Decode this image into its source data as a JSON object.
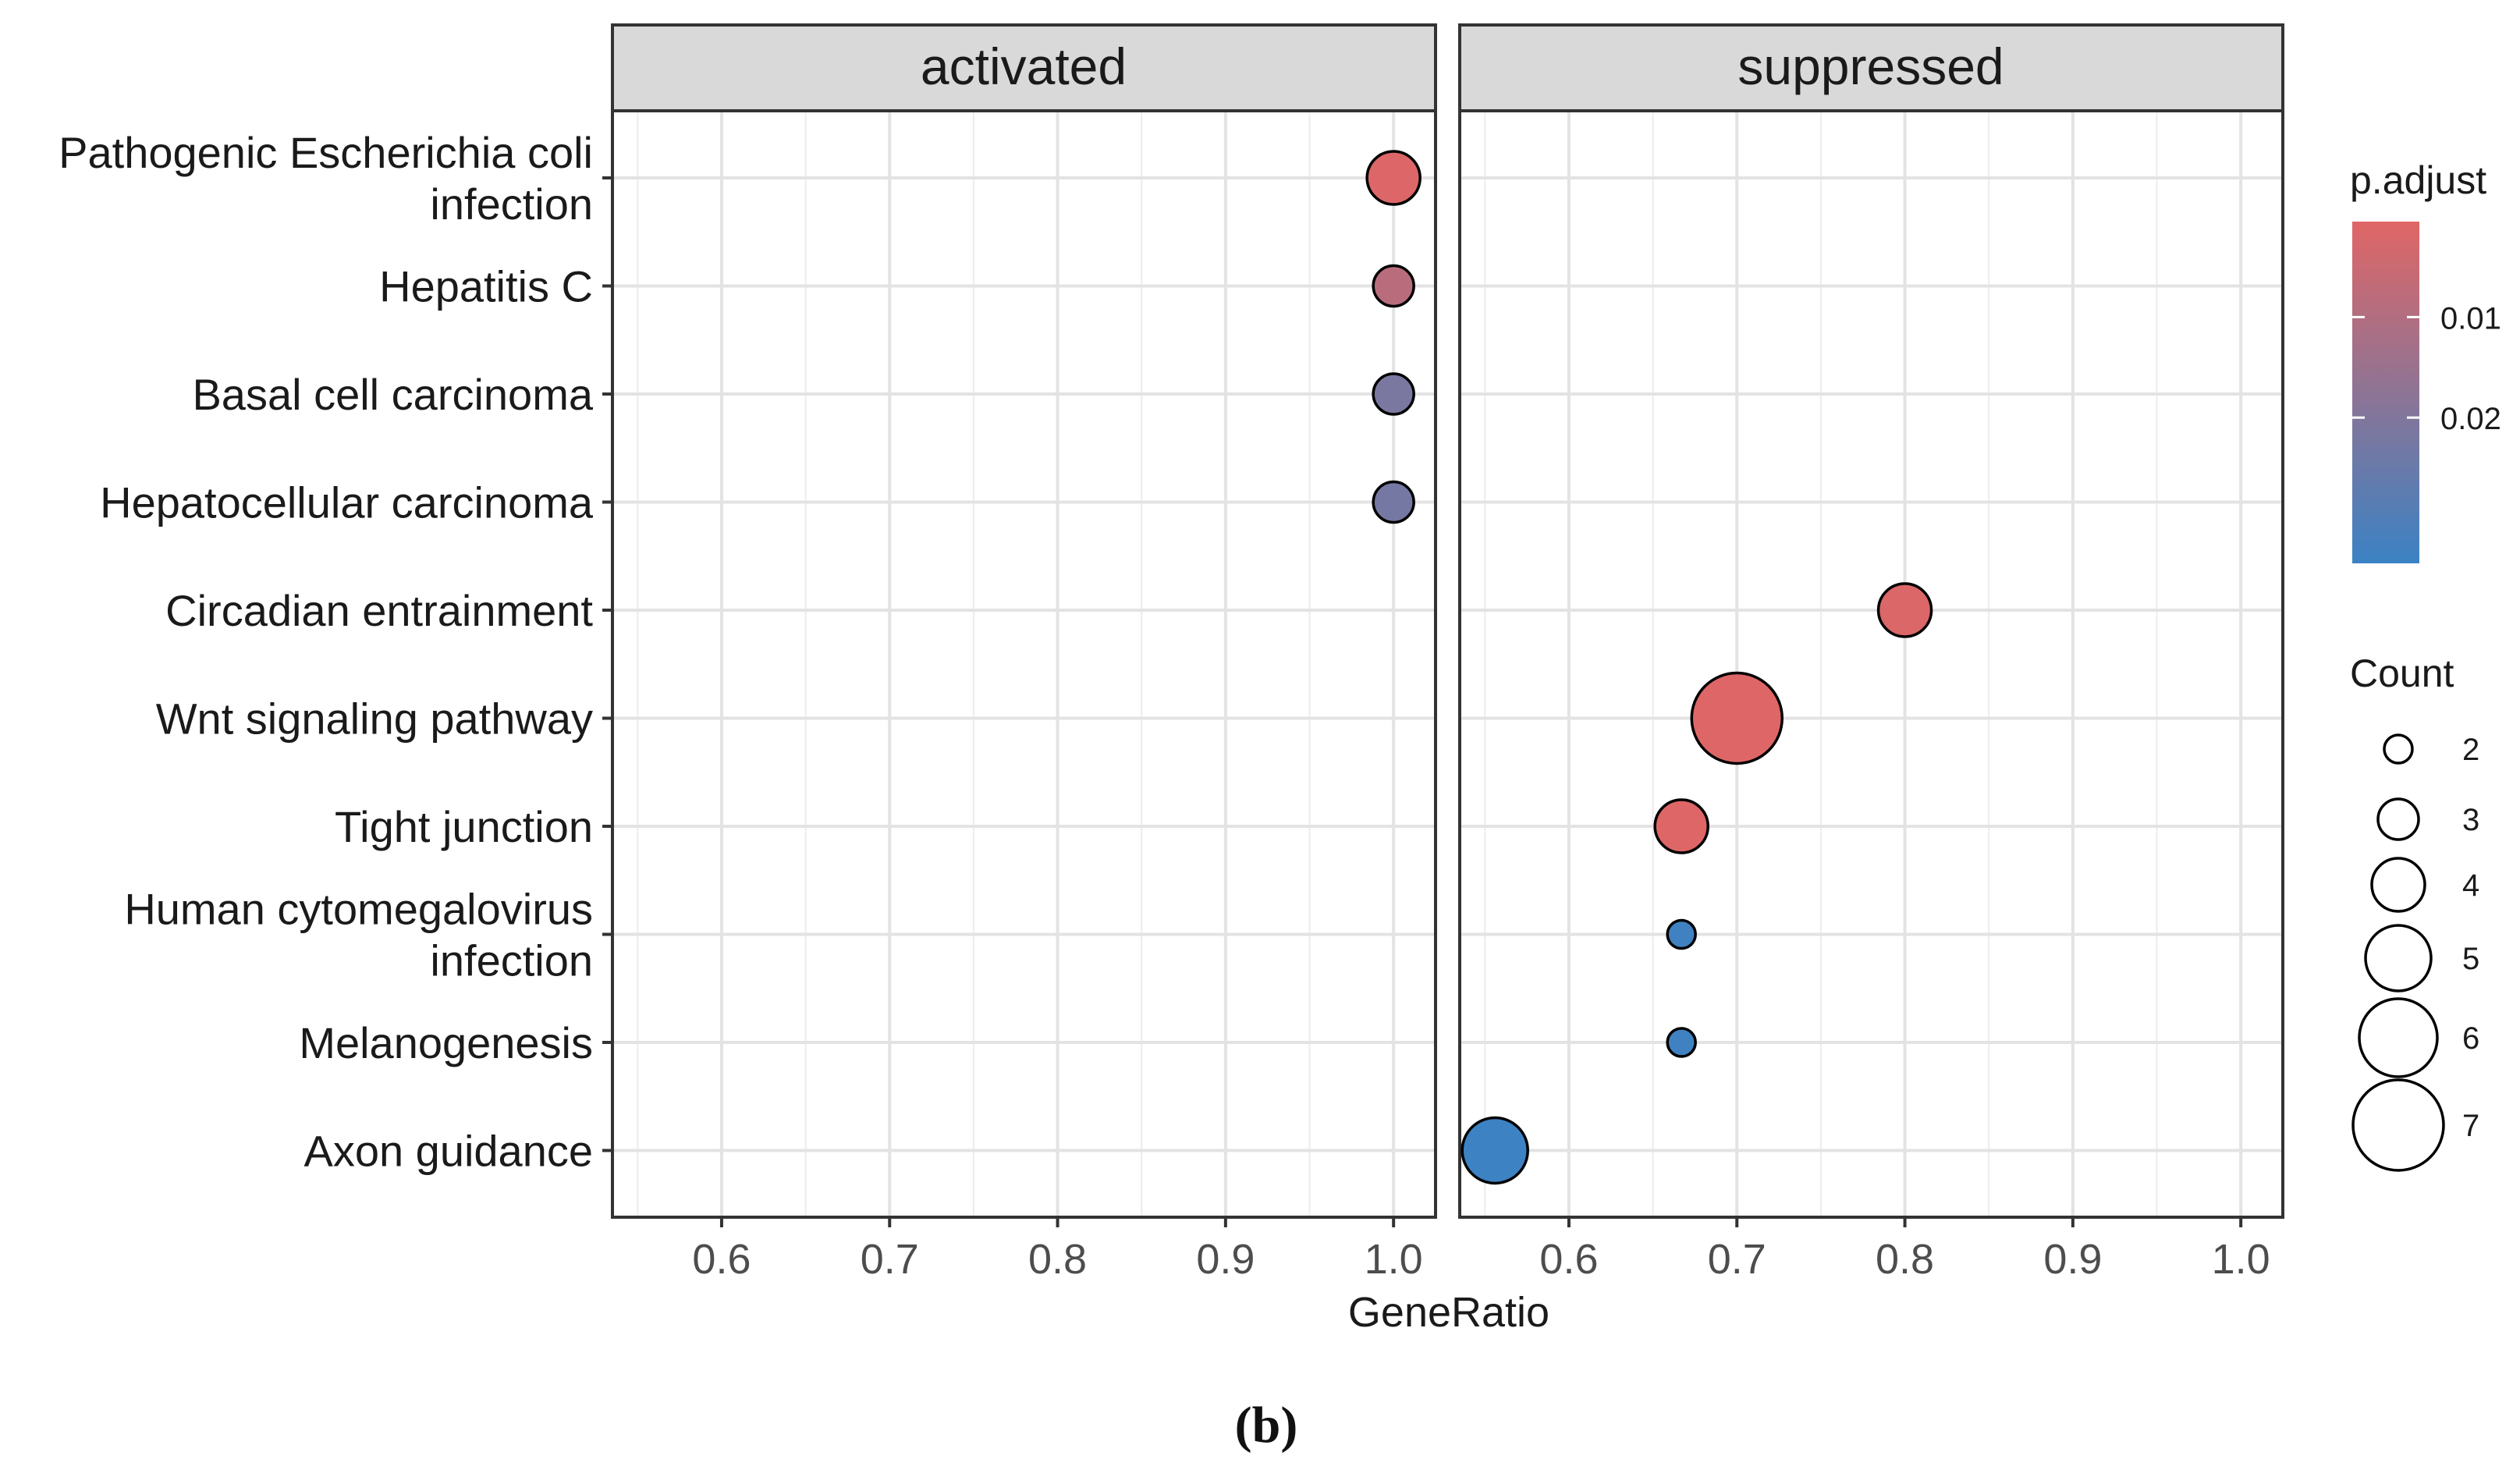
{
  "chart_data": {
    "type": "scatter",
    "subtype": "faceted dot plot",
    "xlabel": "GeneRatio",
    "xlim": [
      0.535,
      1.025
    ],
    "x_ticks": [
      0.6,
      0.7,
      0.8,
      0.9,
      1.0
    ],
    "x_tick_labels": [
      "0.6",
      "0.7",
      "0.8",
      "0.9",
      "1.0"
    ],
    "grid": true,
    "categories": [
      [
        "Pathogenic Escherichia coli",
        "infection"
      ],
      [
        "Hepatitis C"
      ],
      [
        "Basal cell carcinoma"
      ],
      [
        "Hepatocellular carcinoma"
      ],
      [
        "Circadian entrainment"
      ],
      [
        "Wnt signaling pathway"
      ],
      [
        "Tight junction"
      ],
      [
        "Human cytomegalovirus",
        "infection"
      ],
      [
        "Melanogenesis"
      ],
      [
        "Axon guidance"
      ]
    ],
    "facets": [
      {
        "name": "activated",
        "points": [
          {
            "category": 0,
            "gene_ratio": 1.0,
            "count": 4,
            "p_adjust": 0.0012
          },
          {
            "category": 1,
            "gene_ratio": 1.0,
            "count": 3,
            "p_adjust": 0.0085
          },
          {
            "category": 2,
            "gene_ratio": 1.0,
            "count": 3,
            "p_adjust": 0.0215
          },
          {
            "category": 3,
            "gene_ratio": 1.0,
            "count": 3,
            "p_adjust": 0.0225
          }
        ]
      },
      {
        "name": "suppressed",
        "points": [
          {
            "category": 4,
            "gene_ratio": 0.8,
            "count": 4,
            "p_adjust": 0.0015
          },
          {
            "category": 5,
            "gene_ratio": 0.7,
            "count": 7,
            "p_adjust": 0.001
          },
          {
            "category": 6,
            "gene_ratio": 0.667,
            "count": 4,
            "p_adjust": 0.001
          },
          {
            "category": 7,
            "gene_ratio": 0.667,
            "count": 2,
            "p_adjust": 0.0335
          },
          {
            "category": 8,
            "gene_ratio": 0.667,
            "count": 2,
            "p_adjust": 0.0335
          },
          {
            "category": 9,
            "gene_ratio": 0.556,
            "count": 5,
            "p_adjust": 0.034
          }
        ]
      }
    ],
    "color_legend": {
      "title": "p.adjust",
      "range": [
        0.0005,
        0.0345
      ],
      "ticks": [
        0.01,
        0.02
      ],
      "tick_labels": [
        "0.01",
        "0.02"
      ],
      "low_color": "#e06666",
      "high_color": "#3b82c4"
    },
    "size_legend": {
      "title": "Count",
      "values": [
        2,
        3,
        4,
        5,
        6,
        7
      ],
      "labels": [
        "2",
        "3",
        "4",
        "5",
        "6",
        "7"
      ]
    },
    "caption": "(b)"
  }
}
